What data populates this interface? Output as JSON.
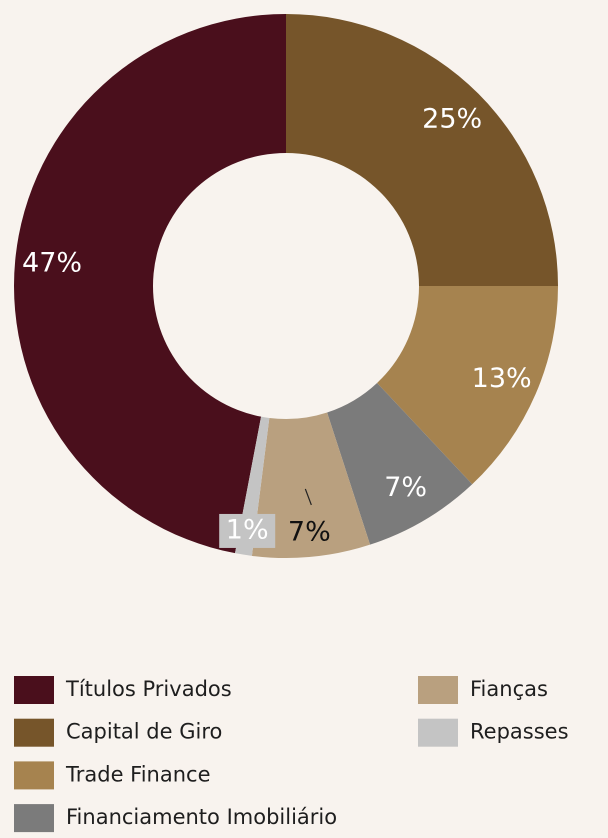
{
  "chart_data": {
    "type": "donut",
    "categories": [
      "Títulos Privados",
      "Capital de Giro",
      "Trade Finance",
      "Financiamento Imobiliário",
      "Fianças",
      "Repasses"
    ],
    "values": [
      47,
      25,
      13,
      7,
      7,
      1
    ],
    "value_labels": [
      "47%",
      "25%",
      "13%",
      "7%",
      "7%",
      "1%"
    ],
    "colors": [
      "#4a0f1c",
      "#76552a",
      "#a6834f",
      "#7b7b7b",
      "#b9a07f",
      "#c4c4c4"
    ],
    "legend": "bottom"
  }
}
